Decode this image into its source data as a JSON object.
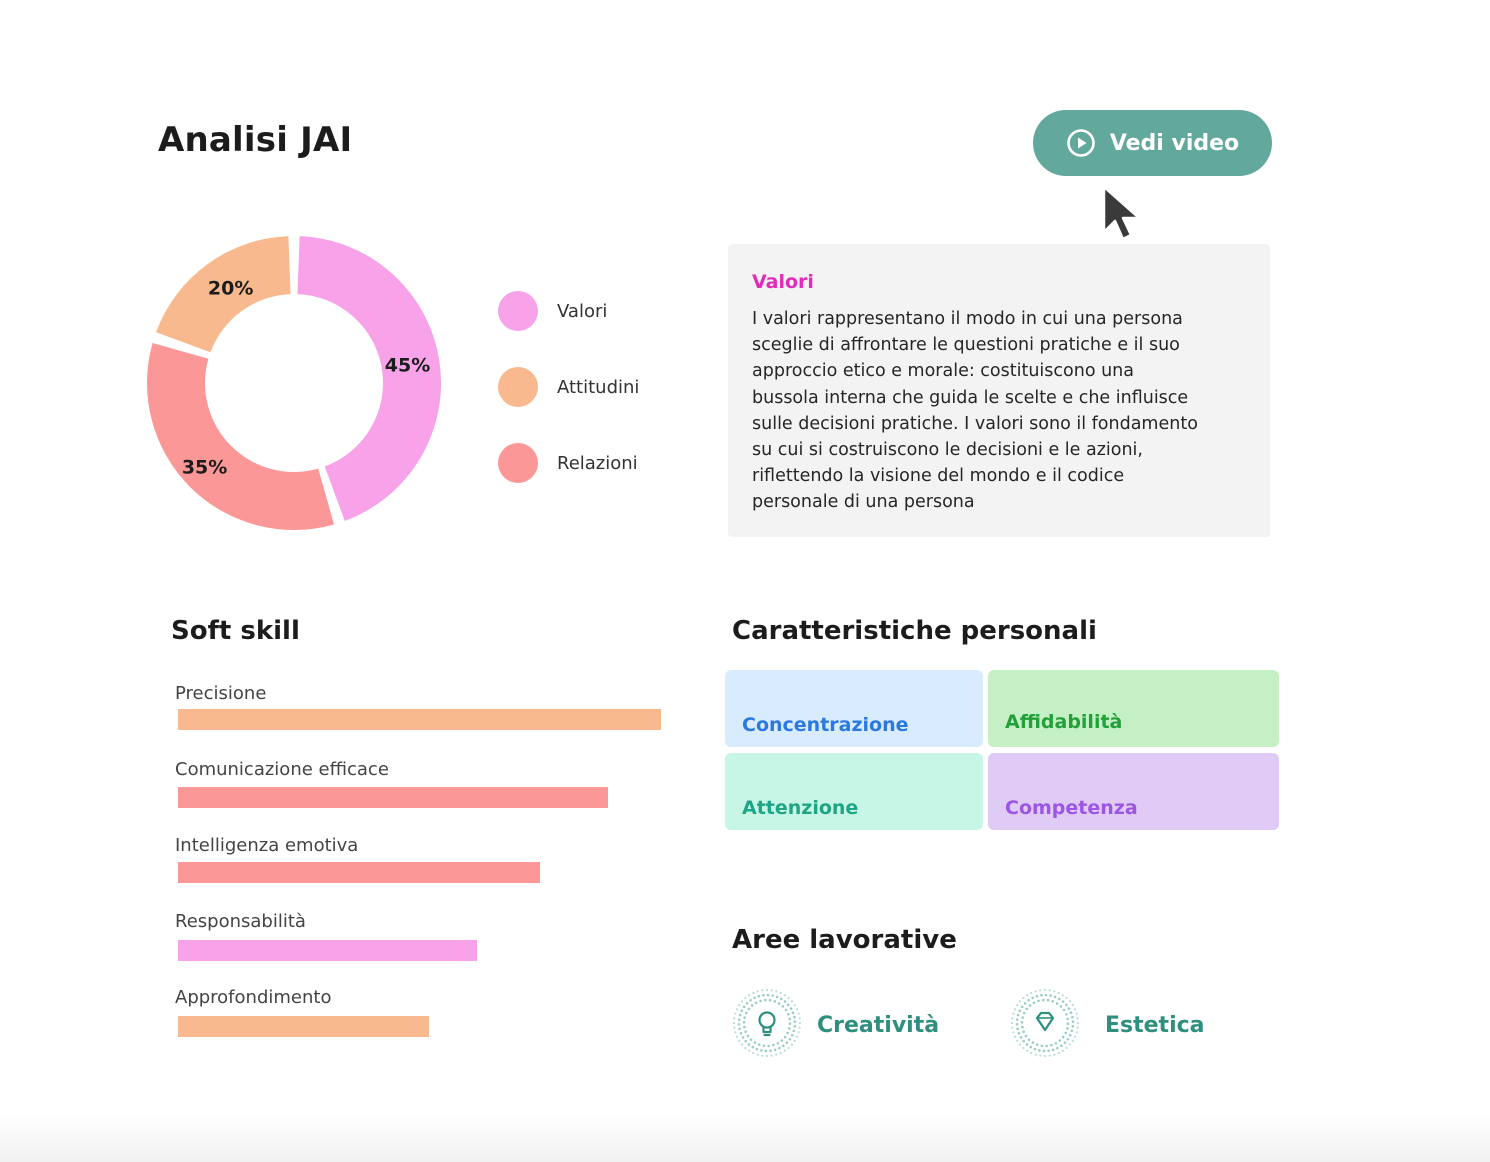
{
  "page": {
    "title": "Analisi JAI"
  },
  "video_button": {
    "label": "Vedi video",
    "icon": "play-circle-icon",
    "color": "#62a89c"
  },
  "donut": {
    "segments": [
      {
        "name": "Valori",
        "percent": 45,
        "label": "45%",
        "color": "#f8a3e9"
      },
      {
        "name": "Relazioni",
        "percent": 35,
        "label": "35%",
        "color": "#fc9797"
      },
      {
        "name": "Attitudini",
        "percent": 20,
        "label": "20%",
        "color": "#f9b98e"
      }
    ]
  },
  "legend": [
    {
      "label": "Valori",
      "color": "#f8a3e9"
    },
    {
      "label": "Attitudini",
      "color": "#f9b98e"
    },
    {
      "label": "Relazioni",
      "color": "#fc9797"
    }
  ],
  "description": {
    "title": "Valori",
    "text": "I valori rappresentano il modo in cui una persona\nsceglie di affrontare  le questioni pratiche e il suo\napproccio etico e morale: costituiscono  una\nbussola interna che guida le scelte e che influisce\nsulle decisioni  pratiche. I valori sono il fondamento\nsu cui si costruiscono le  decisioni e le azioni,\nriflettendo la visione del mondo e il codice\npersonale di una persona"
  },
  "soft_skills": {
    "title": "Soft skill",
    "items": [
      {
        "label": "Precisione",
        "level": 1.0,
        "color": "#f9b98e"
      },
      {
        "label": "Comunicazione efficace",
        "level": 0.89,
        "color": "#fc9797"
      },
      {
        "label": "Intelligenza emotiva",
        "level": 0.75,
        "color": "#fc9797"
      },
      {
        "label": "Responsabilità",
        "level": 0.62,
        "color": "#f8a3e9"
      },
      {
        "label": "Approfondimento",
        "level": 0.52,
        "color": "#f9b98e"
      }
    ]
  },
  "personal_traits": {
    "title": "Caratteristiche personali",
    "items": [
      {
        "label": "Concentrazione",
        "bg": "#d9ecfd",
        "color": "#2b78e0"
      },
      {
        "label": "Affidabilità",
        "bg": "#c5f0c5",
        "color": "#23a03a"
      },
      {
        "label": "Attenzione",
        "bg": "#c7f5e6",
        "color": "#1ea586"
      },
      {
        "label": "Competenza",
        "bg": "#dfcbf6",
        "color": "#9b56e6"
      }
    ]
  },
  "work_areas": {
    "title": "Aree lavorative",
    "items": [
      {
        "label": "Creatività",
        "icon": "lightbulb-icon"
      },
      {
        "label": "Estetica",
        "icon": "diamond-icon"
      }
    ]
  }
}
